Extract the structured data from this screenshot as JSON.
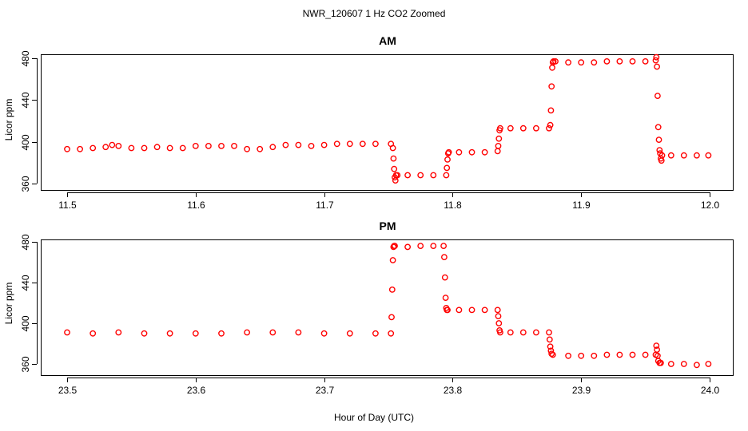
{
  "figure": {
    "suptitle": "NWR_120607  1 Hz CO2 Zoomed",
    "xlabel": "Hour of Day (UTC)"
  },
  "chart_data": [
    {
      "type": "scatter",
      "title": "AM",
      "ylabel": "Licor ppm",
      "xlabel": "",
      "xlim": [
        11.5,
        12.0
      ],
      "ylim": [
        360,
        480
      ],
      "x_ticks": [
        11.5,
        11.6,
        11.7,
        11.8,
        11.9,
        12.0
      ],
      "x_tick_labels": [
        "11.5",
        "11.6",
        "11.7",
        "11.8",
        "11.9",
        "12.0"
      ],
      "y_ticks": [
        360,
        400,
        440,
        480
      ],
      "y_tick_labels": [
        "360",
        "400",
        "440",
        "480"
      ],
      "grid": false,
      "marker": "open-circle",
      "color": "#ff0000",
      "series": [
        {
          "x": [
            11.5,
            11.51,
            11.52,
            11.53,
            11.535,
            11.54,
            11.55,
            11.56,
            11.57,
            11.58,
            11.59,
            11.6,
            11.61,
            11.62,
            11.63,
            11.64,
            11.65,
            11.66,
            11.67,
            11.68,
            11.69,
            11.7,
            11.71,
            11.72,
            11.73,
            11.74,
            11.752,
            11.7535,
            11.754,
            11.7545,
            11.755,
            11.7555,
            11.756,
            11.757,
            11.765,
            11.775,
            11.785,
            11.795,
            11.7955,
            11.796,
            11.7965,
            11.797,
            11.805,
            11.815,
            11.825,
            11.835,
            11.8355,
            11.836,
            11.8365,
            11.837,
            11.845,
            11.855,
            11.865,
            11.875,
            11.876,
            11.8765,
            11.877,
            11.8775,
            11.878,
            11.8785,
            11.88,
            11.89,
            11.9,
            11.91,
            11.92,
            11.93,
            11.94,
            11.95,
            11.958,
            11.9585,
            11.959,
            11.9595,
            11.96,
            11.9605,
            11.961,
            11.9615,
            11.962,
            11.9625,
            11.963,
            11.97,
            11.98,
            11.99,
            11.999
          ],
          "y": [
            393,
            393,
            394,
            395,
            397,
            396,
            394,
            394,
            395,
            394,
            394,
            396,
            396,
            396,
            396,
            393,
            393,
            395,
            397,
            397,
            396,
            397,
            398,
            398,
            398,
            398,
            398,
            394,
            384,
            374,
            366,
            363,
            368,
            368,
            368,
            368,
            368,
            368,
            375,
            383,
            389,
            390,
            390,
            390,
            390,
            391,
            396,
            403,
            411,
            413,
            413,
            413,
            413,
            413,
            416,
            430,
            453,
            471,
            476,
            477,
            477,
            476,
            476,
            476,
            477,
            477,
            477,
            477,
            478,
            481,
            472,
            444,
            414,
            402,
            392,
            389,
            384,
            382,
            387,
            387,
            387,
            387,
            387
          ]
        }
      ]
    },
    {
      "type": "scatter",
      "title": "PM",
      "ylabel": "Licor ppm",
      "xlabel": "",
      "xlim": [
        23.5,
        24.0
      ],
      "ylim": [
        360,
        480
      ],
      "x_ticks": [
        23.5,
        23.6,
        23.7,
        23.8,
        23.9,
        24.0
      ],
      "x_tick_labels": [
        "23.5",
        "23.6",
        "23.7",
        "23.8",
        "23.9",
        "24.0"
      ],
      "y_ticks": [
        360,
        400,
        440,
        480
      ],
      "y_tick_labels": [
        "360",
        "400",
        "440",
        "480"
      ],
      "grid": false,
      "marker": "open-circle",
      "color": "#ff0000",
      "series": [
        {
          "x": [
            23.5,
            23.52,
            23.54,
            23.56,
            23.58,
            23.6,
            23.62,
            23.64,
            23.66,
            23.68,
            23.7,
            23.72,
            23.74,
            23.752,
            23.7525,
            23.753,
            23.7535,
            23.754,
            23.7545,
            23.755,
            23.765,
            23.775,
            23.785,
            23.793,
            23.7935,
            23.794,
            23.7945,
            23.795,
            23.7955,
            23.796,
            23.805,
            23.815,
            23.825,
            23.835,
            23.8355,
            23.836,
            23.8365,
            23.837,
            23.845,
            23.855,
            23.865,
            23.875,
            23.8755,
            23.876,
            23.8765,
            23.877,
            23.878,
            23.89,
            23.9,
            23.91,
            23.92,
            23.93,
            23.94,
            23.95,
            23.958,
            23.9585,
            23.959,
            23.9595,
            23.96,
            23.961,
            23.962,
            23.97,
            23.98,
            23.99,
            23.999
          ],
          "y": [
            391,
            390,
            391,
            390,
            390,
            390,
            390,
            391,
            391,
            391,
            390,
            390,
            390,
            390,
            406,
            433,
            462,
            475,
            476,
            476,
            475,
            476,
            476,
            476,
            465,
            445,
            425,
            415,
            413,
            413,
            413,
            413,
            413,
            413,
            407,
            400,
            393,
            391,
            391,
            391,
            391,
            391,
            384,
            377,
            373,
            370,
            369,
            368,
            368,
            368,
            369,
            369,
            369,
            369,
            369,
            378,
            374,
            368,
            363,
            361,
            361,
            360,
            360,
            359,
            360
          ]
        }
      ]
    }
  ]
}
